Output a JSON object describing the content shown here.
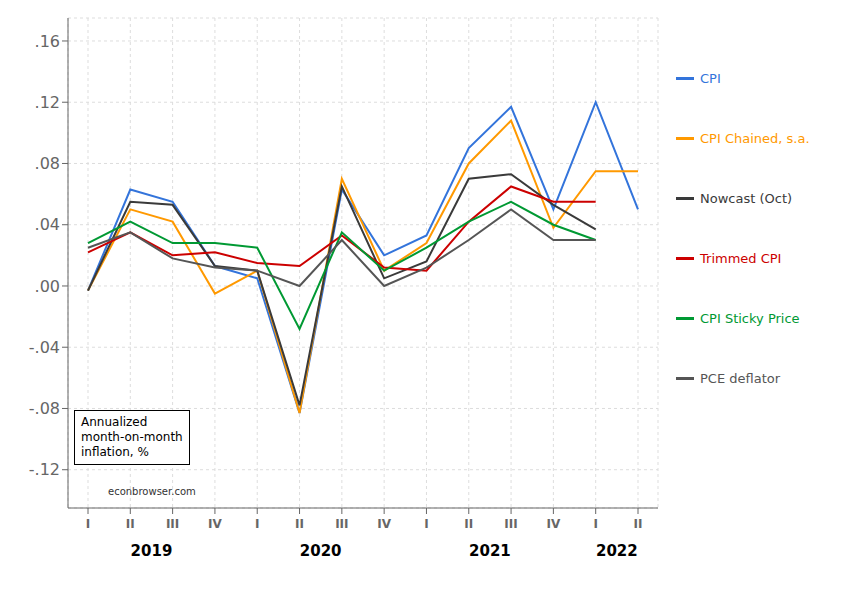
{
  "chart_data": {
    "type": "line",
    "categories": [
      "I",
      "II",
      "III",
      "IV",
      "I",
      "II",
      "III",
      "IV",
      "I",
      "II",
      "III",
      "IV",
      "I",
      "II"
    ],
    "x_groups": [
      {
        "label": "2019",
        "count": 4
      },
      {
        "label": "2020",
        "count": 4
      },
      {
        "label": "2021",
        "count": 4
      },
      {
        "label": "2022",
        "count": 2
      }
    ],
    "series": [
      {
        "name": "CPI",
        "color": "#3374db",
        "values": [
          -0.003,
          0.063,
          0.055,
          0.013,
          0.005,
          -0.083,
          0.063,
          0.02,
          0.033,
          0.09,
          0.117,
          0.05,
          0.12,
          0.05
        ]
      },
      {
        "name": "CPI Chained, s.a.",
        "color": "#ff9900",
        "values": [
          -0.003,
          0.05,
          0.042,
          -0.005,
          0.01,
          -0.083,
          0.07,
          0.01,
          0.028,
          0.08,
          0.108,
          0.038,
          0.075,
          0.075
        ]
      },
      {
        "name": "Nowcast (Oct)",
        "color": "#3a3a3a",
        "values": [
          -0.003,
          0.055,
          0.053,
          0.013,
          0.01,
          -0.078,
          0.065,
          0.005,
          0.016,
          0.07,
          0.073,
          0.053,
          0.037,
          null
        ]
      },
      {
        "name": "Trimmed CPI",
        "color": "#cc0000",
        "values": [
          0.022,
          0.035,
          0.02,
          0.022,
          0.015,
          0.013,
          0.033,
          0.012,
          0.01,
          0.042,
          0.065,
          0.055,
          0.055,
          null
        ]
      },
      {
        "name": "CPI Sticky Price",
        "color": "#009933",
        "values": [
          0.028,
          0.042,
          0.028,
          0.028,
          0.025,
          -0.028,
          0.035,
          0.01,
          0.025,
          0.042,
          0.055,
          0.04,
          0.03,
          null
        ]
      },
      {
        "name": "PCE deflator",
        "color": "#555555",
        "values": [
          0.025,
          0.035,
          0.018,
          0.012,
          0.01,
          0.0,
          0.03,
          0.0,
          0.012,
          0.03,
          0.05,
          0.03,
          0.03,
          null
        ]
      }
    ],
    "ylim": [
      -0.145,
      0.175
    ],
    "yticks": [
      {
        "value": -0.12,
        "label": "-.12"
      },
      {
        "value": -0.08,
        "label": "-.08"
      },
      {
        "value": -0.04,
        "label": "-.04"
      },
      {
        "value": 0.0,
        "label": ".00"
      },
      {
        "value": 0.04,
        "label": ".04"
      },
      {
        "value": 0.08,
        "label": ".08"
      },
      {
        "value": 0.12,
        "label": ".12"
      },
      {
        "value": 0.16,
        "label": ".16"
      }
    ],
    "grid": true,
    "legend": "right",
    "annotations": [
      "Annualized\nmonth-on-month\ninflation, %",
      "econbrowser.com"
    ]
  }
}
